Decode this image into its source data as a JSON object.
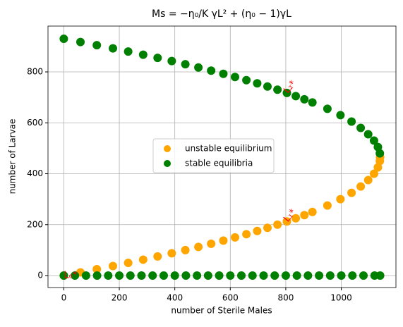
{
  "chart_data": {
    "type": "scatter",
    "title": "Ms = −η₀/K γL² + (η₀ − 1)γL",
    "x_label": "number of Sterile Males",
    "y_label": "number of Larvae",
    "xlim": [
      -57,
      1197
    ],
    "ylim": [
      -47,
      980
    ],
    "xticks": [
      0,
      200,
      400,
      600,
      800,
      1000
    ],
    "yticks": [
      0,
      200,
      400,
      600,
      800
    ],
    "grid": true,
    "legend": "center",
    "series": [
      {
        "name": "unstable equilibrium",
        "color": "#ffa500",
        "x": [
          0,
          60,
          119,
          177,
          232,
          286,
          338,
          389,
          438,
          485,
          531,
          575,
          617,
          658,
          697,
          734,
          770,
          804,
          836,
          867,
          896,
          950,
          997,
          1037,
          1070,
          1097,
          1118,
          1132,
          1139,
          1140
        ],
        "y": [
          0,
          12.5,
          25,
          37.5,
          50,
          62.5,
          75,
          87.5,
          100,
          112.5,
          125,
          137.5,
          150,
          162.5,
          175,
          187.5,
          200,
          212.5,
          225,
          237.5,
          250,
          275,
          300,
          325,
          350,
          375,
          400,
          425,
          450,
          465
        ]
      },
      {
        "name": "stable equilibria",
        "color": "#008000",
        "x": [
          0,
          40,
          80,
          120,
          160,
          200,
          240,
          280,
          320,
          360,
          400,
          440,
          480,
          520,
          560,
          600,
          640,
          680,
          720,
          760,
          800,
          840,
          880,
          920,
          960,
          1000,
          1040,
          1080,
          1120,
          1140,
          1139,
          1132,
          1118,
          1097,
          1070,
          1037,
          997,
          950,
          896,
          867,
          836,
          804,
          770,
          734,
          697,
          658,
          617,
          575,
          531,
          485,
          438,
          389,
          338,
          286,
          232,
          177,
          119,
          60,
          0
        ],
        "y": [
          0,
          0,
          0,
          0,
          0,
          0,
          0,
          0,
          0,
          0,
          0,
          0,
          0,
          0,
          0,
          0,
          0,
          0,
          0,
          0,
          0,
          0,
          0,
          0,
          0,
          0,
          0,
          0,
          0,
          0,
          480,
          505,
          530,
          555,
          580,
          605,
          630,
          655,
          680,
          692.5,
          705,
          717.5,
          730,
          742.5,
          755,
          767.5,
          780,
          792.5,
          805,
          817.5,
          830,
          842.5,
          855,
          867.5,
          880,
          892.5,
          905,
          917.5,
          930
        ]
      }
    ],
    "annotations": [
      {
        "text": "L₀*",
        "x": 0,
        "y": 0,
        "color": "#ff0000",
        "rotate": 0
      },
      {
        "text": "L₁*",
        "x": 800,
        "y": 215,
        "color": "#ff0000",
        "rotate": -50
      },
      {
        "text": "L₂*",
        "x": 800,
        "y": 720,
        "color": "#ff0000",
        "rotate": -50
      }
    ]
  }
}
